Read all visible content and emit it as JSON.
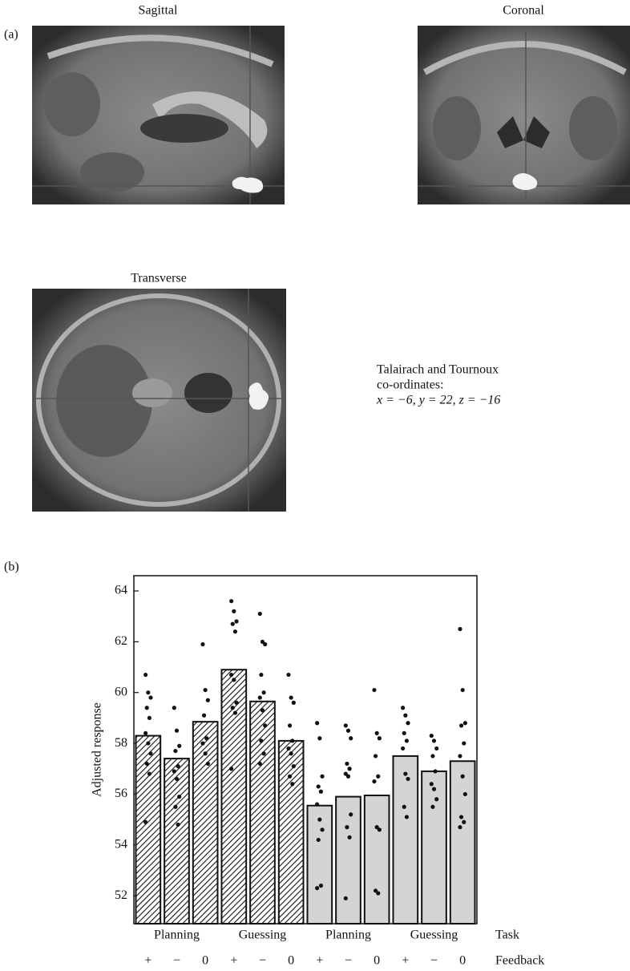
{
  "panel_a": {
    "label": "(a)",
    "sagittal": "Sagittal",
    "coronal": "Coronal",
    "transverse": "Transverse",
    "coords_title_1": "Talairach and Tournoux",
    "coords_title_2": "co-ordinates:",
    "coords": "x = −6, y = 22, z = −16"
  },
  "chart_data": {
    "type": "bar",
    "panel_label": "(b)",
    "ylabel": "Adjusted response",
    "categories": [
      "+",
      "−",
      "0",
      "+",
      "−",
      "0",
      "+",
      "−",
      "0",
      "+",
      "−",
      "0"
    ],
    "task_groups": [
      "Planning",
      "Guessing",
      "Planning",
      "Guessing"
    ],
    "task_label": "Task",
    "feedback_label": "Feedback",
    "values": [
      58.3,
      57.4,
      58.85,
      60.9,
      59.65,
      58.1,
      55.55,
      55.9,
      55.95,
      57.5,
      56.9,
      57.3
    ],
    "fills": [
      "hatch",
      "hatch",
      "hatch",
      "hatch",
      "hatch",
      "hatch",
      "#d4d4d4",
      "#d4d4d4",
      "#d4d4d4",
      "#d4d4d4",
      "#d4d4d4",
      "#d4d4d4"
    ],
    "points": [
      [
        60.7,
        60.0,
        59.8,
        59.4,
        59.0,
        58.4,
        58.0,
        57.6,
        57.2,
        56.8,
        54.9
      ],
      [
        59.4,
        58.5,
        57.9,
        57.7,
        57.1,
        56.9,
        56.6,
        55.9,
        55.5,
        54.8
      ],
      [
        61.9,
        60.1,
        59.7,
        59.1,
        58.2,
        58.0,
        57.6,
        57.2
      ],
      [
        63.6,
        63.2,
        62.8,
        62.7,
        62.4,
        60.7,
        60.5,
        59.6,
        59.4,
        59.2,
        57.0
      ],
      [
        63.1,
        62.0,
        61.9,
        60.7,
        60.0,
        59.8,
        59.3,
        58.7,
        58.1,
        57.6,
        57.2
      ],
      [
        60.7,
        59.8,
        59.6,
        58.7,
        58.1,
        57.8,
        57.6,
        57.1,
        56.7,
        56.4
      ],
      [
        58.8,
        58.2,
        56.7,
        56.3,
        56.1,
        55.6,
        55.0,
        54.6,
        54.2,
        52.4,
        52.3
      ],
      [
        58.7,
        58.5,
        58.2,
        57.2,
        57.0,
        56.8,
        56.7,
        55.2,
        54.7,
        54.3,
        51.9
      ],
      [
        60.1,
        58.4,
        58.2,
        57.5,
        56.7,
        56.5,
        54.7,
        54.6,
        52.2,
        52.1
      ],
      [
        59.4,
        59.1,
        58.8,
        58.4,
        58.1,
        57.8,
        56.8,
        56.6,
        55.5,
        55.1
      ],
      [
        58.3,
        58.1,
        57.8,
        57.5,
        56.9,
        56.4,
        56.2,
        55.8,
        55.5
      ],
      [
        62.5,
        60.1,
        58.8,
        58.7,
        58.0,
        57.5,
        56.7,
        56.0,
        55.1,
        54.9,
        54.7
      ]
    ],
    "ylim": [
      50.9,
      64.6
    ],
    "yticks": [
      52,
      54,
      56,
      58,
      60,
      62,
      64
    ]
  }
}
